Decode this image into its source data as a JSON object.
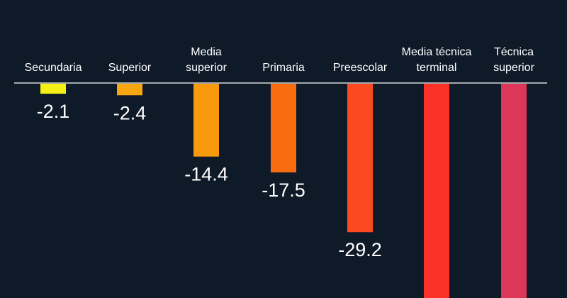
{
  "page": {
    "background": "#0f1a29",
    "text_color": "#ffffff"
  },
  "chart_data": {
    "type": "bar",
    "orientation": "vertical",
    "title": "",
    "xlabel": "",
    "ylabel": "",
    "categories": [
      "Secundaria",
      "Superior",
      "Media superior",
      "Primaria",
      "Preescolar",
      "Media técnica terminal",
      "Técnica superior"
    ],
    "category_label_lines": [
      [
        "Secundaria"
      ],
      [
        "Superior"
      ],
      [
        "Media",
        "superior"
      ],
      [
        "Primaria"
      ],
      [
        "Preescolar"
      ],
      [
        "Media técnica",
        "terminal"
      ],
      [
        "Técnica",
        "superior"
      ]
    ],
    "values": [
      -2.1,
      -2.4,
      -14.4,
      -17.5,
      -29.2,
      null,
      null
    ],
    "value_labels": [
      "-2.1",
      "-2.4",
      "-14.4",
      "-17.5",
      "-29.2",
      "",
      ""
    ],
    "colors": [
      "#f6ef16",
      "#f8a610",
      "#f89a0d",
      "#fa6c10",
      "#fb4a21",
      "#f93127",
      "#dc3658"
    ],
    "grid": false,
    "legend": "none",
    "baseline_color": "#ffffff",
    "ylim": [
      -40,
      0
    ]
  }
}
